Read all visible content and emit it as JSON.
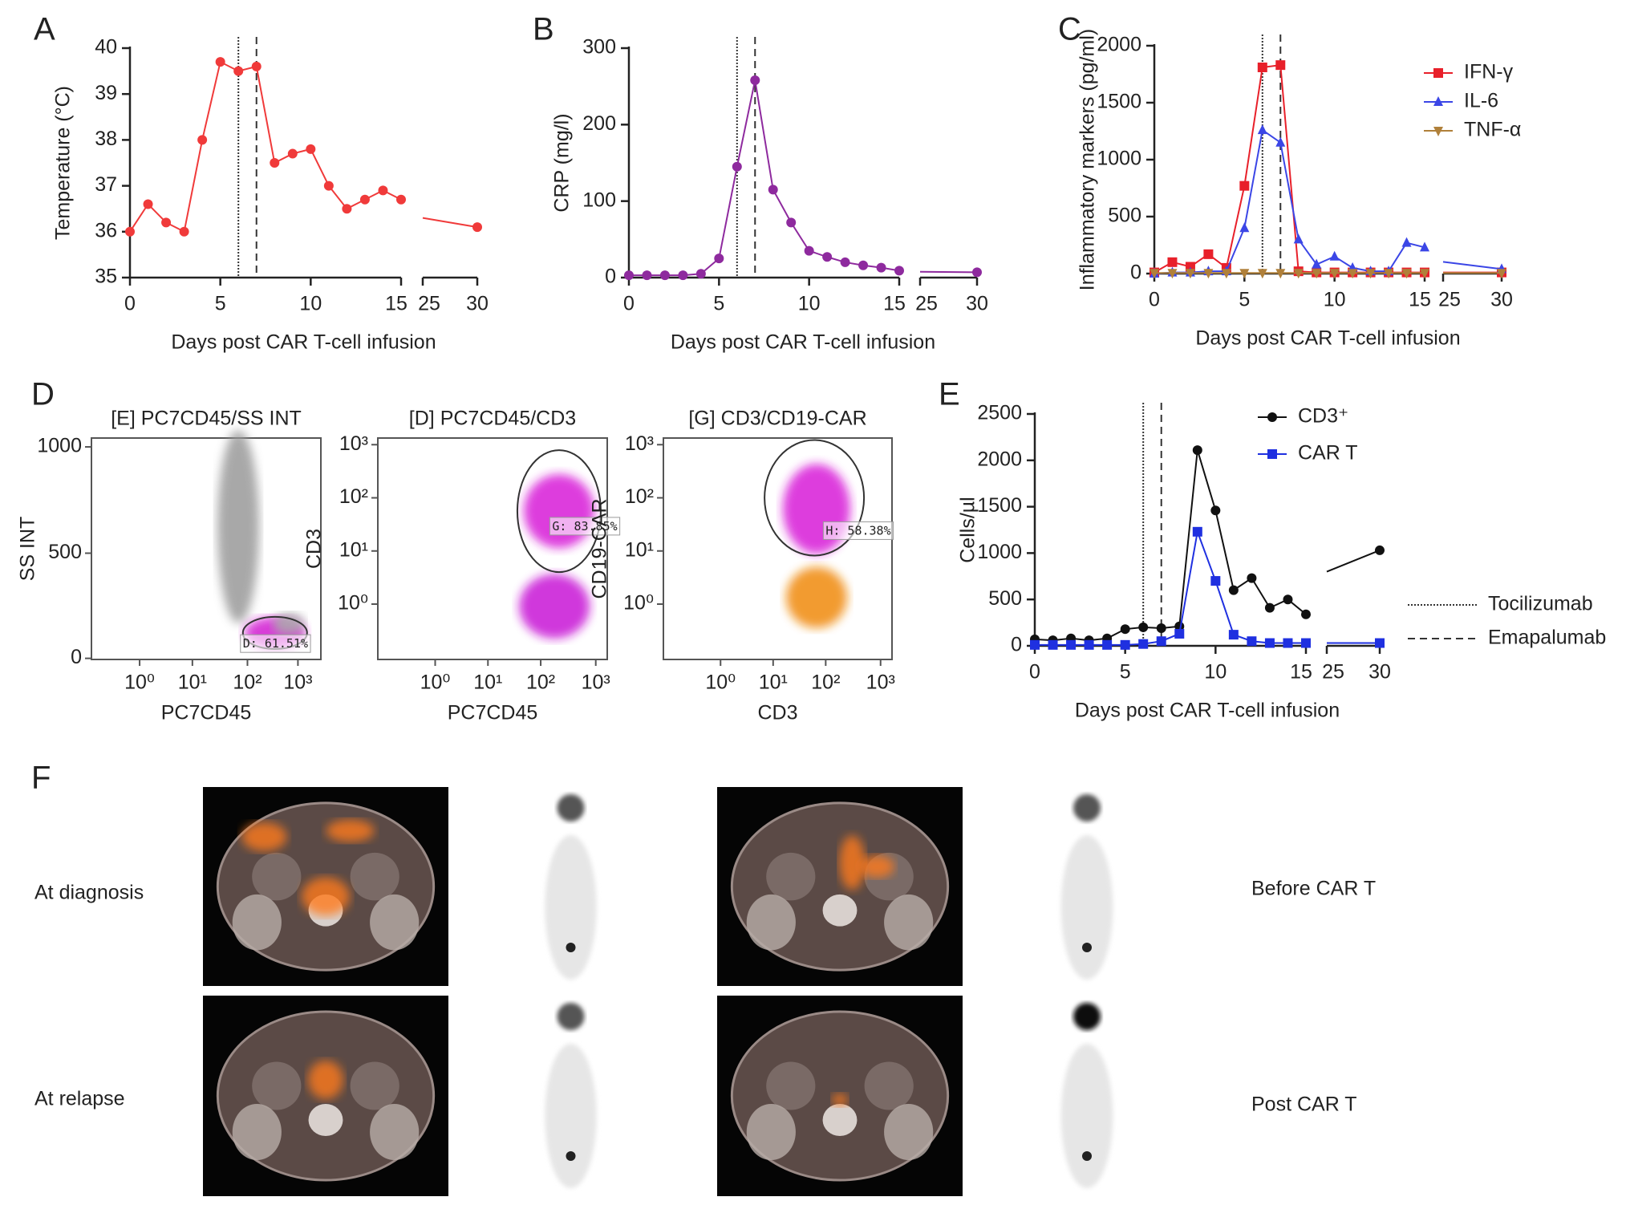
{
  "chart_data": [
    {
      "type": "line",
      "panel": "A",
      "ylabel": "Temperature (°C)",
      "xlabel": "Days post CAR T-cell infusion",
      "x": [
        0,
        1,
        2,
        3,
        4,
        5,
        6,
        7,
        8,
        9,
        10,
        11,
        12,
        13,
        14,
        15,
        30
      ],
      "xlim": [
        [
          0,
          15
        ],
        [
          25,
          30
        ]
      ],
      "xticks": [
        0,
        5,
        10,
        15,
        25,
        30
      ],
      "ylim": [
        35,
        40
      ],
      "yticks": [
        35,
        36,
        37,
        38,
        39,
        40
      ],
      "color": "#f03a3a",
      "marker": "circle",
      "values": [
        36.0,
        36.6,
        36.2,
        36.0,
        38.0,
        39.7,
        39.5,
        39.6,
        37.5,
        37.7,
        37.8,
        37.0,
        36.5,
        36.7,
        36.9,
        36.7,
        36.1
      ],
      "vlines": [
        {
          "x": 6,
          "style": "dotted"
        },
        {
          "x": 7,
          "style": "dashed"
        }
      ]
    },
    {
      "type": "line",
      "panel": "B",
      "ylabel": "CRP (mg/l)",
      "xlabel": "Days post CAR T-cell infusion",
      "x": [
        0,
        1,
        2,
        3,
        4,
        5,
        6,
        7,
        8,
        9,
        10,
        11,
        12,
        13,
        14,
        15,
        30
      ],
      "xlim": [
        [
          0,
          15
        ],
        [
          25,
          30
        ]
      ],
      "xticks": [
        0,
        5,
        10,
        15,
        25,
        30
      ],
      "ylim": [
        0,
        300
      ],
      "yticks": [
        0,
        100,
        200,
        300
      ],
      "color": "#8e2a9e",
      "marker": "circle",
      "values": [
        3,
        3,
        3,
        3,
        5,
        25,
        145,
        258,
        115,
        72,
        35,
        27,
        20,
        16,
        13,
        9,
        7
      ],
      "vlines": [
        {
          "x": 6,
          "style": "dotted"
        },
        {
          "x": 7,
          "style": "dashed"
        }
      ]
    },
    {
      "type": "line",
      "panel": "C",
      "ylabel": "Inflammatory markers (pg/ml)",
      "xlabel": "Days post CAR T-cell infusion",
      "x": [
        0,
        1,
        2,
        3,
        4,
        5,
        6,
        7,
        8,
        9,
        10,
        11,
        12,
        13,
        14,
        15,
        30
      ],
      "xlim": [
        [
          0,
          15
        ],
        [
          25,
          30
        ]
      ],
      "xticks": [
        0,
        5,
        10,
        15,
        25,
        30
      ],
      "ylim": [
        0,
        2000
      ],
      "yticks": [
        0,
        500,
        1000,
        1500,
        2000
      ],
      "series": [
        {
          "name": "IFN-γ",
          "color": "#e8202a",
          "marker": "square",
          "values": [
            10,
            100,
            60,
            170,
            50,
            770,
            1810,
            1830,
            20,
            10,
            10,
            10,
            10,
            10,
            10,
            10,
            10
          ]
        },
        {
          "name": "IL-6",
          "color": "#3b46e6",
          "marker": "triangle",
          "values": [
            0,
            10,
            10,
            20,
            20,
            400,
            1260,
            1150,
            300,
            80,
            150,
            50,
            20,
            20,
            270,
            230,
            40
          ]
        },
        {
          "name": "TNF-α",
          "color": "#b0803a",
          "marker": "triangle-down",
          "values": [
            5,
            5,
            5,
            5,
            5,
            5,
            5,
            5,
            5,
            5,
            5,
            5,
            5,
            5,
            5,
            5,
            5
          ]
        }
      ],
      "vlines": [
        {
          "x": 6,
          "style": "dotted"
        },
        {
          "x": 7,
          "style": "dashed"
        }
      ]
    },
    {
      "type": "line",
      "panel": "E",
      "ylabel": "Cells/µl",
      "xlabel": "Days post CAR T-cell infusion",
      "x": [
        0,
        1,
        2,
        3,
        4,
        5,
        6,
        7,
        8,
        9,
        10,
        11,
        12,
        13,
        14,
        15,
        30
      ],
      "xlim": [
        [
          0,
          15
        ],
        [
          25,
          30
        ]
      ],
      "xticks": [
        0,
        5,
        10,
        15,
        25,
        30
      ],
      "ylim": [
        0,
        2500
      ],
      "yticks": [
        0,
        500,
        1000,
        1500,
        2000,
        2500
      ],
      "series": [
        {
          "name": "CD3⁺",
          "color": "#111111",
          "marker": "circle",
          "values": [
            70,
            60,
            80,
            60,
            80,
            180,
            200,
            190,
            210,
            2110,
            1460,
            600,
            730,
            410,
            500,
            340,
            1030
          ]
        },
        {
          "name": "CAR T",
          "color": "#1f30e0",
          "marker": "square",
          "values": [
            10,
            10,
            10,
            10,
            10,
            10,
            20,
            50,
            130,
            1230,
            700,
            120,
            50,
            30,
            30,
            30,
            30
          ]
        }
      ],
      "vlines": [
        {
          "x": 6,
          "style": "dotted",
          "name": "Tocilizumab"
        },
        {
          "x": 7,
          "style": "dashed",
          "name": "Emapalumab"
        }
      ]
    }
  ],
  "flow_cytometry": {
    "panel": "D",
    "plots": [
      {
        "title": "[E] PC7CD45/SS INT",
        "xlabel": "PC7CD45",
        "ylabel": "SS INT",
        "xticks": [
          "10⁰",
          "10¹",
          "10²",
          "10³"
        ],
        "yticks": [
          "1000",
          "500",
          "0"
        ],
        "gate": "D: 61.51%"
      },
      {
        "title": "[D] PC7CD45/CD3",
        "xlabel": "PC7CD45",
        "ylabel": "CD3",
        "xticks": [
          "10⁰",
          "10¹",
          "10²",
          "10³"
        ],
        "yticks": [
          "10³",
          "10²",
          "10¹",
          "10⁰"
        ],
        "gate": "G: 83.85%"
      },
      {
        "title": "[G] CD3/CD19-CAR",
        "xlabel": "CD3",
        "ylabel": "CD19-CAR",
        "xticks": [
          "10⁰",
          "10¹",
          "10²",
          "10³"
        ],
        "yticks": [
          "10³",
          "10²",
          "10¹",
          "10⁰"
        ],
        "gate": "H: 58.38%"
      }
    ]
  },
  "imaging": {
    "panel": "F",
    "left_labels": [
      "At diagnosis",
      "At relapse"
    ],
    "right_labels": [
      "Before CAR T",
      "Post CAR T"
    ]
  }
}
